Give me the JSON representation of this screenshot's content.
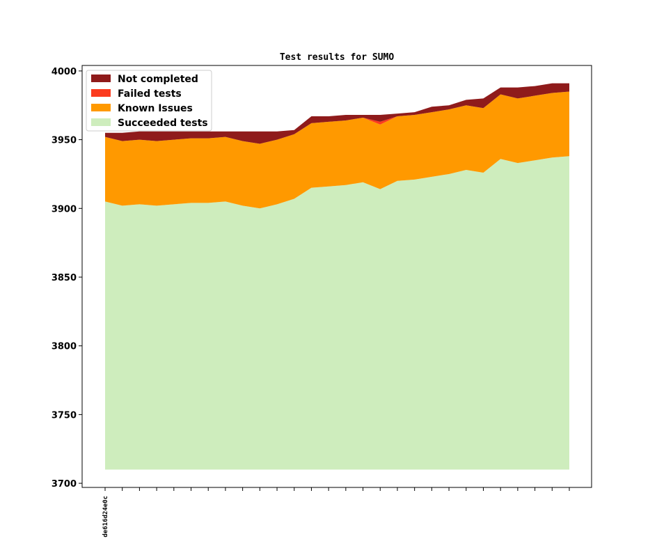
{
  "chart_data": {
    "type": "area",
    "stacked": true,
    "title": "Test results for SUMO",
    "xlabel": "",
    "ylabel": "",
    "ylim": [
      3697,
      4004
    ],
    "yticks": [
      3700,
      3750,
      3800,
      3850,
      3900,
      3950,
      4000
    ],
    "baseline": 3710,
    "x_tick_count": 28,
    "x_labels": [
      "de616d24e0c",
      "",
      "",
      "",
      "",
      "",
      "",
      "",
      "",
      "",
      "",
      "",
      "",
      "",
      "",
      "",
      "",
      "",
      "",
      "",
      "",
      "",
      "",
      "",
      "",
      "",
      "",
      ""
    ],
    "legend_position": "top-left",
    "series": [
      {
        "name": "Succeeded tests",
        "color": "#ceedbd",
        "cumulative_top": [
          3905,
          3902,
          3903,
          3902,
          3903,
          3904,
          3904,
          3905,
          3902,
          3900,
          3903,
          3907,
          3915,
          3916,
          3917,
          3919,
          3914,
          3920,
          3921,
          3923,
          3925,
          3928,
          3926,
          3936,
          3933,
          3935,
          3937,
          3938
        ]
      },
      {
        "name": "Known Issues",
        "color": "#ff9900",
        "cumulative_top": [
          3952,
          3949,
          3950,
          3949,
          3950,
          3951,
          3951,
          3952,
          3949,
          3947,
          3950,
          3954,
          3962,
          3963,
          3964,
          3966,
          3961,
          3967,
          3968,
          3970,
          3972,
          3975,
          3973,
          3983,
          3980,
          3982,
          3984,
          3985
        ]
      },
      {
        "name": "Failed tests",
        "color": "#fb3b1e",
        "cumulative_top": [
          3952,
          3949,
          3950,
          3949,
          3950,
          3951,
          3951,
          3952,
          3949,
          3947,
          3950,
          3954,
          3962,
          3963,
          3964,
          3966,
          3963,
          3967,
          3968,
          3970,
          3972,
          3975,
          3973,
          3983,
          3980,
          3982,
          3984,
          3985
        ]
      },
      {
        "name": "Not completed",
        "color": "#8f1b1b",
        "cumulative_top": [
          3955,
          3955,
          3956,
          3956,
          3956,
          3956,
          3956,
          3956,
          3956,
          3956,
          3956,
          3957,
          3967,
          3967,
          3968,
          3968,
          3968,
          3969,
          3970,
          3974,
          3975,
          3979,
          3980,
          3988,
          3988,
          3989,
          3991,
          3991
        ]
      }
    ],
    "legend_order": [
      "Not completed",
      "Failed tests",
      "Known Issues",
      "Succeeded tests"
    ]
  }
}
